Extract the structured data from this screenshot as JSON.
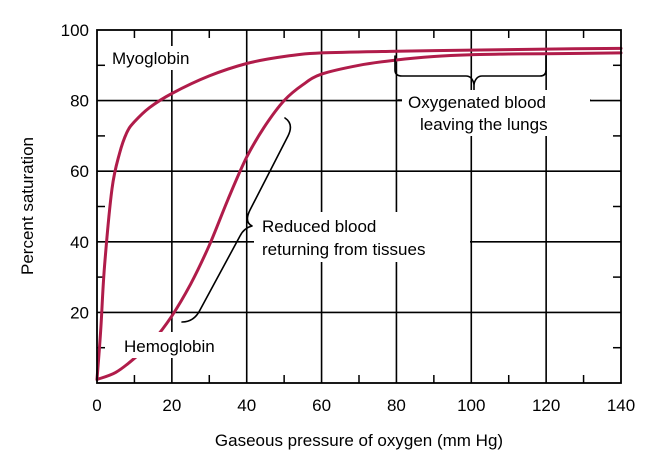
{
  "chart_data": {
    "type": "line",
    "title": "",
    "xlabel": "Gaseous pressure of oxygen (mm Hg)",
    "ylabel": "Percent saturation",
    "xlim": [
      0,
      140
    ],
    "ylim": [
      0,
      100
    ],
    "x_ticks": [
      0,
      20,
      40,
      60,
      80,
      100,
      120,
      140
    ],
    "y_ticks": [
      20,
      40,
      60,
      80,
      100
    ],
    "grid": true,
    "series": [
      {
        "name": "Myoglobin",
        "color": "#b01c4a",
        "x": [
          0,
          1,
          2,
          4,
          6,
          8,
          10,
          14,
          20,
          30,
          40,
          50,
          60,
          80,
          100,
          120,
          140
        ],
        "y": [
          1,
          15,
          33,
          55,
          65,
          71,
          74,
          78,
          82,
          87,
          90.5,
          92.5,
          93.5,
          94,
          94.3,
          94.6,
          94.8
        ]
      },
      {
        "name": "Hemoglobin",
        "color": "#b01c4a",
        "x": [
          0,
          5,
          10,
          15,
          20,
          25,
          30,
          35,
          40,
          45,
          50,
          55,
          60,
          70,
          80,
          90,
          100,
          110,
          120,
          140
        ],
        "y": [
          1,
          3,
          7,
          12,
          19,
          28,
          39,
          52,
          64,
          73,
          80,
          84.5,
          87.5,
          90,
          91.5,
          92.5,
          93,
          93.2,
          93.3,
          93.5
        ]
      }
    ],
    "annotations": {
      "oxygenated": "Oxygenated blood\nleaving the lungs",
      "reduced": "Reduced blood\nreturning from tissues"
    }
  }
}
